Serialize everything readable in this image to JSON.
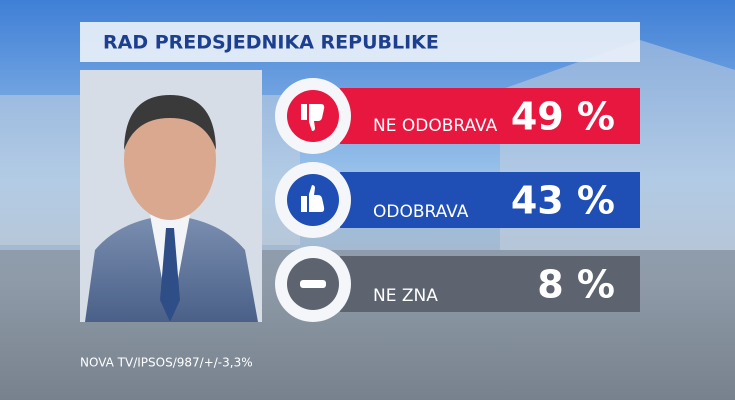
{
  "header": {
    "title": "RAD PREDSJEDNIKA REPUBLIKE"
  },
  "rows": [
    {
      "label": "NE ODOBRAVA",
      "value": "49 %"
    },
    {
      "label": "ODOBRAVA",
      "value": "43 %"
    },
    {
      "label": "NE ZNA",
      "value": "8 %"
    }
  ],
  "footer": {
    "source": "NOVA TV/IPSOS/987/+/-3,3%"
  }
}
